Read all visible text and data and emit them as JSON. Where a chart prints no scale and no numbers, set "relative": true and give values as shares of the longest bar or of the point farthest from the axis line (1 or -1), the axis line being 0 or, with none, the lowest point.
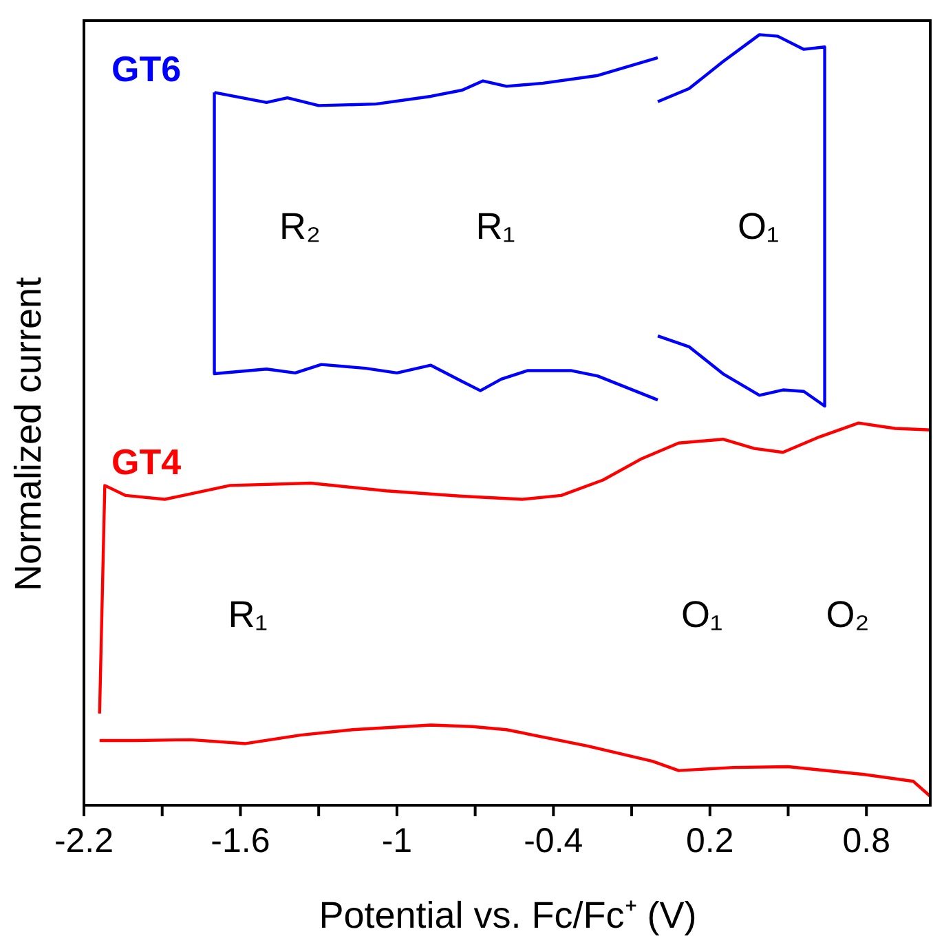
{
  "chart_data": {
    "type": "line",
    "relative": true,
    "xlabel": "Potential vs. Fc/Fc⁺ (V)",
    "ylabel": "Normalized current",
    "tick_labels": "x",
    "xlim": [
      -2.2,
      1.05
    ],
    "xticks": [
      -2.2,
      {
        "value": -1.9,
        "label": null
      },
      -1.6,
      {
        "value": -1.3,
        "label": null
      },
      -1,
      {
        "value": -0.7,
        "label": null
      },
      -0.4,
      {
        "value": -0.1,
        "label": null
      },
      0.2,
      {
        "value": 0.5,
        "label": null
      },
      0.8
    ],
    "series": [
      {
        "name": "GT6",
        "color": "#0000ff",
        "x": [
          -1.7,
          -1.7,
          -1.5,
          -1.39,
          -1.29,
          -1.12,
          -1.0,
          -0.87,
          -0.75,
          -0.68,
          -0.6,
          -0.5,
          -0.33,
          -0.23,
          0.0,
          null,
          0.0,
          0.12,
          0.25,
          0.39,
          0.48,
          0.56,
          0.64,
          0.64,
          0.56,
          0.46,
          0.39,
          0.25,
          0.12,
          0.0,
          null,
          0.0,
          -0.23,
          -0.44,
          -0.58,
          -0.67,
          -0.75,
          -0.87,
          -1.08,
          -1.3,
          -1.42,
          -1.5,
          -1.7
        ],
        "values": [
          0.925,
          0.56,
          0.566,
          0.561,
          0.572,
          0.567,
          0.561,
          0.571,
          0.55,
          0.538,
          0.553,
          0.564,
          0.564,
          0.557,
          0.526,
          null,
          0.609,
          0.595,
          0.56,
          0.532,
          0.539,
          0.537,
          0.518,
          0.984,
          0.981,
          0.998,
          1.0,
          0.965,
          0.93,
          0.913,
          null,
          0.97,
          0.947,
          0.937,
          0.933,
          0.94,
          0.928,
          0.92,
          0.91,
          0.908,
          0.918,
          0.912,
          0.925
        ]
      },
      {
        "name": "GT4",
        "color": "#ff0000",
        "x": [
          -2.14,
          -2.12,
          -2.04,
          -1.89,
          -1.64,
          -1.33,
          -1.04,
          -0.75,
          -0.52,
          -0.37,
          -0.21,
          -0.06,
          0.08,
          0.25,
          0.37,
          0.48,
          0.62,
          0.77,
          0.91,
          1.05,
          1.05,
          0.98,
          0.79,
          0.5,
          0.29,
          0.08,
          -0.02,
          -0.27,
          -0.58,
          -0.71,
          -0.87,
          -1.17,
          -1.37,
          -1.58,
          -1.79,
          -2.0,
          -2.14
        ],
        "values": [
          0.119,
          0.415,
          0.402,
          0.397,
          0.415,
          0.418,
          0.408,
          0.401,
          0.397,
          0.402,
          0.422,
          0.45,
          0.47,
          0.475,
          0.463,
          0.458,
          0.478,
          0.496,
          0.489,
          0.487,
          0.01,
          0.031,
          0.04,
          0.05,
          0.049,
          0.045,
          0.057,
          0.077,
          0.098,
          0.102,
          0.104,
          0.098,
          0.091,
          0.08,
          0.085,
          0.084,
          0.084
        ]
      }
    ],
    "annotations": [
      "R₂",
      "R₁",
      "O₁",
      "R₁",
      "O₁",
      "O₂"
    ]
  }
}
